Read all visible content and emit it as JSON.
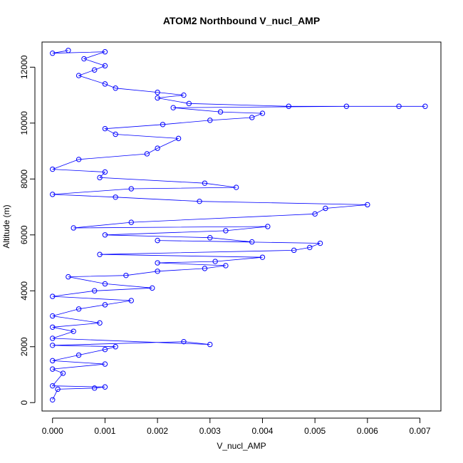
{
  "chart_data": {
    "type": "scatter",
    "title": "ATOM2 Northbound V_nucl_AMP",
    "xlabel": "V_nucl_AMP",
    "ylabel": "Altitude (m)",
    "xlim": [
      -0.0002,
      0.0074
    ],
    "ylim": [
      -300,
      12900
    ],
    "xticks": [
      0,
      0.001,
      0.002,
      0.003,
      0.004,
      0.005,
      0.006,
      0.007
    ],
    "xtick_labels": [
      "0.000",
      "0.001",
      "0.002",
      "0.003",
      "0.004",
      "0.005",
      "0.006",
      "0.007"
    ],
    "yticks": [
      0,
      2000,
      4000,
      6000,
      8000,
      10000,
      12000
    ],
    "ytick_labels": [
      "0",
      "2000",
      "4000",
      "6000",
      "8000",
      "10000",
      "12000"
    ],
    "series": [
      {
        "name": "V_nucl_AMP",
        "color": "#0000ff",
        "marker": "open-circle",
        "connected": true,
        "points": [
          [
            0,
            100
          ],
          [
            0.0001,
            480
          ],
          [
            0.0008,
            520
          ],
          [
            0.001,
            560
          ],
          [
            0,
            600
          ],
          [
            0.0002,
            1050
          ],
          [
            0,
            1200
          ],
          [
            0.001,
            1380
          ],
          [
            0,
            1500
          ],
          [
            0.0005,
            1700
          ],
          [
            0.001,
            1900
          ],
          [
            0.0012,
            2000
          ],
          [
            0,
            2050
          ],
          [
            0.0025,
            2180
          ],
          [
            0.003,
            2080
          ],
          [
            0,
            2300
          ],
          [
            0.0004,
            2550
          ],
          [
            0,
            2700
          ],
          [
            0.0009,
            2850
          ],
          [
            0,
            3100
          ],
          [
            0.0005,
            3350
          ],
          [
            0.001,
            3500
          ],
          [
            0.0015,
            3650
          ],
          [
            0,
            3800
          ],
          [
            0.0008,
            4000
          ],
          [
            0.0019,
            4100
          ],
          [
            0.001,
            4250
          ],
          [
            0.0003,
            4500
          ],
          [
            0.0014,
            4550
          ],
          [
            0.002,
            4700
          ],
          [
            0.0029,
            4800
          ],
          [
            0.0033,
            4900
          ],
          [
            0.002,
            5000
          ],
          [
            0.0031,
            5050
          ],
          [
            0.004,
            5200
          ],
          [
            0.0009,
            5300
          ],
          [
            0.0046,
            5450
          ],
          [
            0.0049,
            5550
          ],
          [
            0.0051,
            5700
          ],
          [
            0.002,
            5800
          ],
          [
            0.0038,
            5750
          ],
          [
            0.003,
            5900
          ],
          [
            0.001,
            6000
          ],
          [
            0.0033,
            6150
          ],
          [
            0.0041,
            6300
          ],
          [
            0.0004,
            6250
          ],
          [
            0.0015,
            6450
          ],
          [
            0.005,
            6750
          ],
          [
            0.0052,
            6950
          ],
          [
            0.006,
            7080
          ],
          [
            0.0028,
            7200
          ],
          [
            0.0012,
            7350
          ],
          [
            0,
            7450
          ],
          [
            0.0015,
            7650
          ],
          [
            0.0035,
            7700
          ],
          [
            0.0029,
            7850
          ],
          [
            0.0009,
            8050
          ],
          [
            0.001,
            8250
          ],
          [
            0,
            8350
          ],
          [
            0.0005,
            8700
          ],
          [
            0.0018,
            8900
          ],
          [
            0.002,
            9100
          ],
          [
            0.0024,
            9450
          ],
          [
            0.0012,
            9600
          ],
          [
            0.001,
            9800
          ],
          [
            0.0021,
            9950
          ],
          [
            0.003,
            10100
          ],
          [
            0.0038,
            10200
          ],
          [
            0.004,
            10350
          ],
          [
            0.0032,
            10400
          ],
          [
            0.0023,
            10550
          ],
          [
            0.0056,
            10600
          ],
          [
            0.0066,
            10600
          ],
          [
            0.0071,
            10600
          ],
          [
            0.0045,
            10600
          ],
          [
            0.0026,
            10700
          ],
          [
            0.002,
            10900
          ],
          [
            0.0025,
            11000
          ],
          [
            0.002,
            11100
          ],
          [
            0.0012,
            11250
          ],
          [
            0.001,
            11400
          ],
          [
            0.0005,
            11700
          ],
          [
            0.0008,
            11900
          ],
          [
            0.001,
            12050
          ],
          [
            0.0006,
            12300
          ],
          [
            0.001,
            12550
          ],
          [
            0,
            12500
          ],
          [
            0.0003,
            12600
          ]
        ]
      }
    ]
  }
}
